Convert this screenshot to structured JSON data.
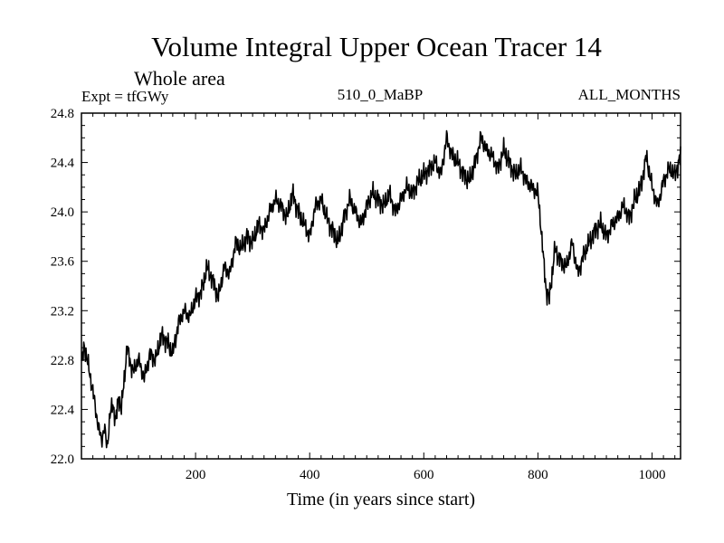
{
  "chart_data": {
    "type": "line",
    "title": "Volume Integral Upper Ocean Tracer 14",
    "subtitle": "Whole area",
    "experiment_label": "Expt = tfGWy",
    "run_label": "510_0_MaBP",
    "months_label": "ALL_MONTHS",
    "xlabel": "Time (in years since start)",
    "ylabel": "",
    "xlim": [
      0,
      1050
    ],
    "ylim": [
      22.0,
      24.8
    ],
    "x_ticks": [
      200,
      400,
      600,
      800,
      1000
    ],
    "x_tick_labels": [
      "200",
      "400",
      "600",
      "800",
      "1000"
    ],
    "y_ticks": [
      22.0,
      22.4,
      22.8,
      23.2,
      23.6,
      24.0,
      24.4,
      24.8
    ],
    "y_tick_labels": [
      "22.0",
      "22.4",
      "22.8",
      "23.2",
      "23.6",
      "24.0",
      "24.4",
      "24.8"
    ],
    "grid": false,
    "series": [
      {
        "name": "Tracer 14",
        "color": "#000000",
        "x": [
          0,
          5,
          10,
          20,
          30,
          35,
          40,
          45,
          50,
          55,
          60,
          65,
          70,
          75,
          80,
          90,
          100,
          110,
          120,
          130,
          140,
          150,
          160,
          170,
          180,
          190,
          200,
          210,
          220,
          230,
          240,
          250,
          260,
          270,
          280,
          290,
          300,
          310,
          320,
          330,
          340,
          350,
          360,
          370,
          380,
          390,
          400,
          410,
          420,
          430,
          440,
          450,
          460,
          470,
          480,
          490,
          500,
          510,
          520,
          530,
          540,
          550,
          560,
          570,
          580,
          590,
          600,
          610,
          620,
          630,
          640,
          650,
          660,
          670,
          680,
          690,
          700,
          710,
          720,
          730,
          740,
          750,
          760,
          770,
          780,
          790,
          800,
          805,
          810,
          815,
          820,
          825,
          830,
          840,
          850,
          860,
          870,
          880,
          890,
          900,
          910,
          920,
          930,
          940,
          950,
          960,
          970,
          980,
          990,
          1000,
          1010,
          1020,
          1030,
          1040,
          1050
        ],
        "y": [
          22.75,
          22.92,
          22.8,
          22.55,
          22.25,
          22.15,
          22.25,
          22.1,
          22.35,
          22.45,
          22.3,
          22.5,
          22.4,
          22.65,
          22.9,
          22.7,
          22.8,
          22.65,
          22.85,
          22.8,
          23.0,
          22.95,
          22.85,
          23.1,
          23.2,
          23.15,
          23.3,
          23.35,
          23.55,
          23.45,
          23.3,
          23.55,
          23.5,
          23.75,
          23.7,
          23.8,
          23.75,
          23.9,
          23.85,
          24.0,
          24.1,
          24.05,
          23.95,
          24.15,
          24.0,
          23.9,
          23.8,
          24.05,
          24.1,
          23.95,
          23.85,
          23.75,
          23.95,
          24.1,
          24.0,
          23.9,
          24.05,
          24.15,
          24.1,
          24.05,
          24.15,
          24.0,
          24.1,
          24.2,
          24.15,
          24.25,
          24.3,
          24.35,
          24.4,
          24.3,
          24.6,
          24.45,
          24.4,
          24.3,
          24.25,
          24.4,
          24.6,
          24.5,
          24.45,
          24.35,
          24.5,
          24.4,
          24.3,
          24.35,
          24.25,
          24.2,
          24.15,
          23.9,
          23.6,
          23.35,
          23.3,
          23.5,
          23.7,
          23.6,
          23.55,
          23.75,
          23.5,
          23.65,
          23.75,
          23.85,
          23.9,
          23.8,
          23.9,
          23.95,
          24.05,
          23.95,
          24.1,
          24.2,
          24.45,
          24.2,
          24.05,
          24.25,
          24.35,
          24.3,
          24.45
        ]
      }
    ]
  }
}
